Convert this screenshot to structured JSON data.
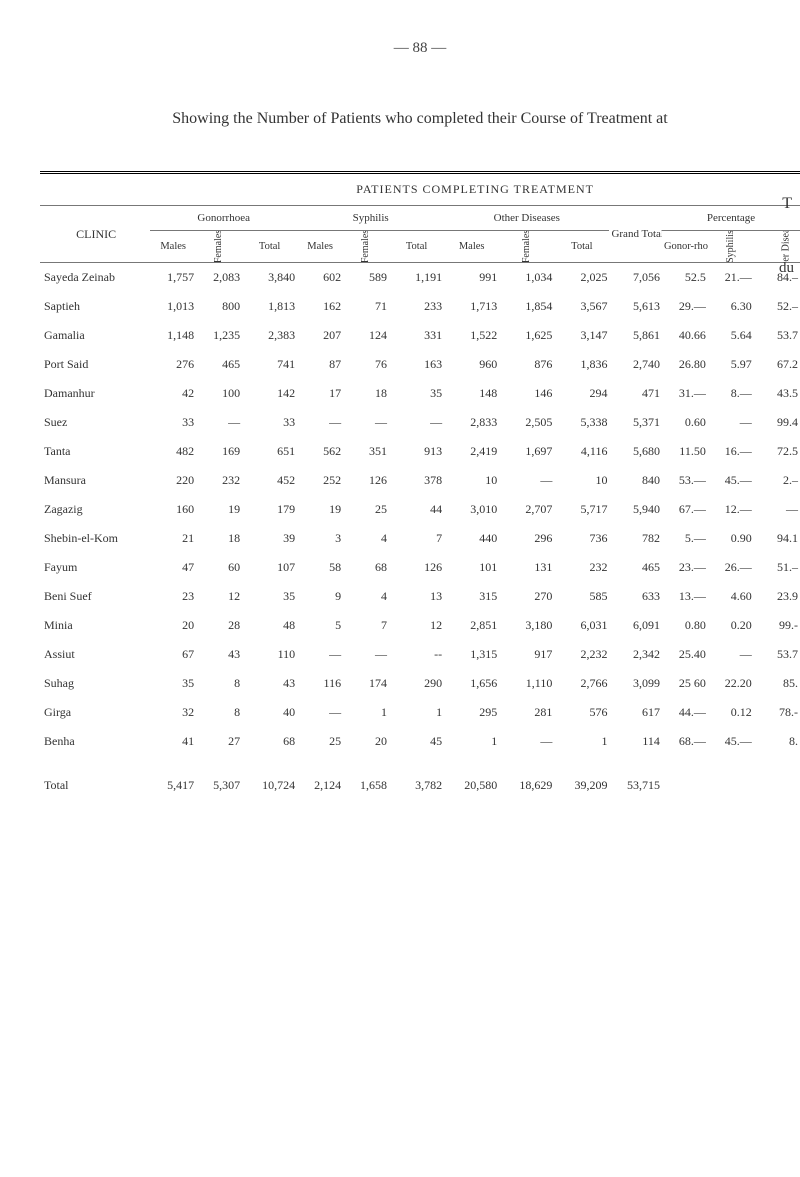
{
  "pagenum": "— 88 —",
  "t_corner": "T",
  "du": "du",
  "title": "Showing the Number of Patients who completed their Course of Treatment at",
  "super_title": "PATIENTS   COMPLETING   TREATMENT",
  "clinic_label": "CLINIC",
  "groups": {
    "gon": "Gonorrhoea",
    "syp": "Syphilis",
    "oth": "Other Diseases",
    "gt": "Grand Total",
    "pct": "Percentage"
  },
  "subs": {
    "males": "Males",
    "females": "Females",
    "total": "Total",
    "gonor": "Gonor-rhoea",
    "syph": "Syphilis",
    "other": "Other Diseases"
  },
  "rows": [
    {
      "c": "Sayeda Zeinab",
      "gm": "1,757",
      "gf": "2,083",
      "gt": "3,840",
      "sm": "602",
      "sf": "589",
      "st": "1,191",
      "om": "991",
      "of": "1,034",
      "ot": "2,025",
      "gtot": "7,056",
      "pg": "52.5",
      "ps": "21.—",
      "po": "84.–"
    },
    {
      "c": "Saptieh",
      "gm": "1,013",
      "gf": "800",
      "gt": "1,813",
      "sm": "162",
      "sf": "71",
      "st": "233",
      "om": "1,713",
      "of": "1,854",
      "ot": "3,567",
      "gtot": "5,613",
      "pg": "29.—",
      "ps": "6.30",
      "po": "52.–"
    },
    {
      "c": "Gamalia",
      "gm": "1,148",
      "gf": "1,235",
      "gt": "2,383",
      "sm": "207",
      "sf": "124",
      "st": "331",
      "om": "1,522",
      "of": "1,625",
      "ot": "3,147",
      "gtot": "5,861",
      "pg": "40.66",
      "ps": "5.64",
      "po": "53.7"
    },
    {
      "c": "Port Said",
      "gm": "276",
      "gf": "465",
      "gt": "741",
      "sm": "87",
      "sf": "76",
      "st": "163",
      "om": "960",
      "of": "876",
      "ot": "1,836",
      "gtot": "2,740",
      "pg": "26.80",
      "ps": "5.97",
      "po": "67.2"
    },
    {
      "c": "Damanhur",
      "gm": "42",
      "gf": "100",
      "gt": "142",
      "sm": "17",
      "sf": "18",
      "st": "35",
      "om": "148",
      "of": "146",
      "ot": "294",
      "gtot": "471",
      "pg": "31.—",
      "ps": "8.—",
      "po": "43.5"
    },
    {
      "c": "Suez",
      "gm": "33",
      "gf": "—",
      "gt": "33",
      "sm": "—",
      "sf": "—",
      "st": "—",
      "om": "2,833",
      "of": "2,505",
      "ot": "5,338",
      "gtot": "5,371",
      "pg": "0.60",
      "ps": "—",
      "po": "99.4"
    },
    {
      "c": "Tanta",
      "gm": "482",
      "gf": "169",
      "gt": "651",
      "sm": "562",
      "sf": "351",
      "st": "913",
      "om": "2,419",
      "of": "1,697",
      "ot": "4,116",
      "gtot": "5,680",
      "pg": "11.50",
      "ps": "16.—",
      "po": "72.5"
    },
    {
      "c": "Mansura",
      "gm": "220",
      "gf": "232",
      "gt": "452",
      "sm": "252",
      "sf": "126",
      "st": "378",
      "om": "10",
      "of": "—",
      "ot": "10",
      "gtot": "840",
      "pg": "53.—",
      "ps": "45.—",
      "po": "2.–"
    },
    {
      "c": "Zagazig",
      "gm": "160",
      "gf": "19",
      "gt": "179",
      "sm": "19",
      "sf": "25",
      "st": "44",
      "om": "3,010",
      "of": "2,707",
      "ot": "5,717",
      "gtot": "5,940",
      "pg": "67.—",
      "ps": "12.—",
      "po": "—"
    },
    {
      "c": "Shebin-el-Kom",
      "gm": "21",
      "gf": "18",
      "gt": "39",
      "sm": "3",
      "sf": "4",
      "st": "7",
      "om": "440",
      "of": "296",
      "ot": "736",
      "gtot": "782",
      "pg": "5.—",
      "ps": "0.90",
      "po": "94.1"
    },
    {
      "c": "Fayum",
      "gm": "47",
      "gf": "60",
      "gt": "107",
      "sm": "58",
      "sf": "68",
      "st": "126",
      "om": "101",
      "of": "131",
      "ot": "232",
      "gtot": "465",
      "pg": "23.—",
      "ps": "26.—",
      "po": "51.–"
    },
    {
      "c": "Beni Suef",
      "gm": "23",
      "gf": "12",
      "gt": "35",
      "sm": "9",
      "sf": "4",
      "st": "13",
      "om": "315",
      "of": "270",
      "ot": "585",
      "gtot": "633",
      "pg": "13.—",
      "ps": "4.60",
      "po": "23.9"
    },
    {
      "c": "Minia",
      "gm": "20",
      "gf": "28",
      "gt": "48",
      "sm": "5",
      "sf": "7",
      "st": "12",
      "om": "2,851",
      "of": "3,180",
      "ot": "6,031",
      "gtot": "6,091",
      "pg": "0.80",
      "ps": "0.20",
      "po": "99.-"
    },
    {
      "c": "Assiut",
      "gm": "67",
      "gf": "43",
      "gt": "110",
      "sm": "—",
      "sf": "—",
      "st": "--",
      "om": "1,315",
      "of": "917",
      "ot": "2,232",
      "gtot": "2,342",
      "pg": "25.40",
      "ps": "—",
      "po": "53.7"
    },
    {
      "c": "Suhag",
      "gm": "35",
      "gf": "8",
      "gt": "43",
      "sm": "116",
      "sf": "174",
      "st": "290",
      "om": "1,656",
      "of": "1,110",
      "ot": "2,766",
      "gtot": "3,099",
      "pg": "25 60",
      "ps": "22.20",
      "po": "85."
    },
    {
      "c": "Girga",
      "gm": "32",
      "gf": "8",
      "gt": "40",
      "sm": "—",
      "sf": "1",
      "st": "1",
      "om": "295",
      "of": "281",
      "ot": "576",
      "gtot": "617",
      "pg": "44.—",
      "ps": "0.12",
      "po": "78.-"
    },
    {
      "c": "Benha",
      "gm": "41",
      "gf": "27",
      "gt": "68",
      "sm": "25",
      "sf": "20",
      "st": "45",
      "om": "1",
      "of": "—",
      "ot": "1",
      "gtot": "114",
      "pg": "68.—",
      "ps": "45.—",
      "po": "8."
    },
    {
      "c": "Total",
      "gm": "5,417",
      "gf": "5,307",
      "gt": "10,724",
      "sm": "2,124",
      "sf": "1,658",
      "st": "3,782",
      "om": "20,580",
      "of": "18,629",
      "ot": "39,209",
      "gtot": "53,715",
      "pg": "",
      "ps": "",
      "po": ""
    }
  ]
}
